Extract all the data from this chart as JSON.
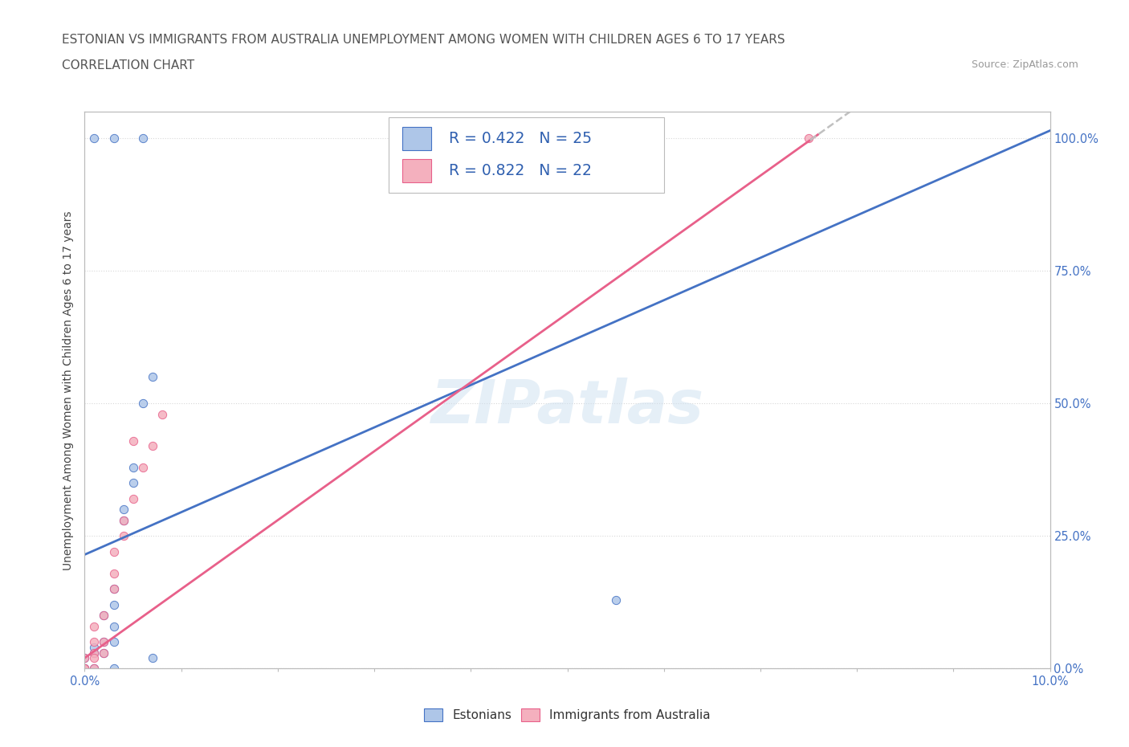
{
  "title_line1": "ESTONIAN VS IMMIGRANTS FROM AUSTRALIA UNEMPLOYMENT AMONG WOMEN WITH CHILDREN AGES 6 TO 17 YEARS",
  "title_line2": "CORRELATION CHART",
  "source": "Source: ZipAtlas.com",
  "ylabel": "Unemployment Among Women with Children Ages 6 to 17 years",
  "xlim": [
    0.0,
    0.1
  ],
  "ylim": [
    0.0,
    1.05
  ],
  "y_tick_labels_right": [
    "0.0%",
    "25.0%",
    "50.0%",
    "75.0%",
    "100.0%"
  ],
  "y_ticks_right": [
    0.0,
    0.25,
    0.5,
    0.75,
    1.0
  ],
  "legend_label1": "R = 0.422   N = 25",
  "legend_label2": "R = 0.822   N = 22",
  "estonian_color": "#aec6e8",
  "australia_color": "#f4b0be",
  "estonian_line_color": "#4472c4",
  "australia_line_color": "#e8608a",
  "trendline_extend_color": "#c0c0c0",
  "watermark": "ZIPatlas",
  "estonian_x": [
    0.001,
    0.003,
    0.006,
    0.0,
    0.0,
    0.001,
    0.001,
    0.002,
    0.002,
    0.002,
    0.003,
    0.003,
    0.003,
    0.003,
    0.004,
    0.004,
    0.005,
    0.005,
    0.006,
    0.007,
    0.055,
    0.0,
    0.001,
    0.003,
    0.007
  ],
  "estonian_y": [
    1.0,
    1.0,
    1.0,
    0.0,
    0.02,
    0.03,
    0.04,
    0.03,
    0.05,
    0.1,
    0.05,
    0.08,
    0.12,
    0.15,
    0.28,
    0.3,
    0.35,
    0.38,
    0.5,
    0.55,
    0.13,
    0.0,
    0.0,
    0.0,
    0.02
  ],
  "australia_x": [
    0.005,
    0.0,
    0.001,
    0.001,
    0.002,
    0.002,
    0.003,
    0.003,
    0.003,
    0.004,
    0.004,
    0.005,
    0.006,
    0.007,
    0.008,
    0.0,
    0.001,
    0.0,
    0.001,
    0.002,
    0.075,
    0.001
  ],
  "australia_y": [
    0.43,
    0.0,
    0.03,
    0.08,
    0.05,
    0.1,
    0.15,
    0.18,
    0.22,
    0.25,
    0.28,
    0.32,
    0.38,
    0.42,
    0.48,
    0.0,
    0.0,
    0.02,
    0.02,
    0.03,
    1.0,
    0.05
  ],
  "estonian_trendline": [
    0.215,
    8.0
  ],
  "australia_trendline": [
    0.02,
    13.0
  ],
  "background_color": "#ffffff",
  "grid_color": "#d8d8d8"
}
